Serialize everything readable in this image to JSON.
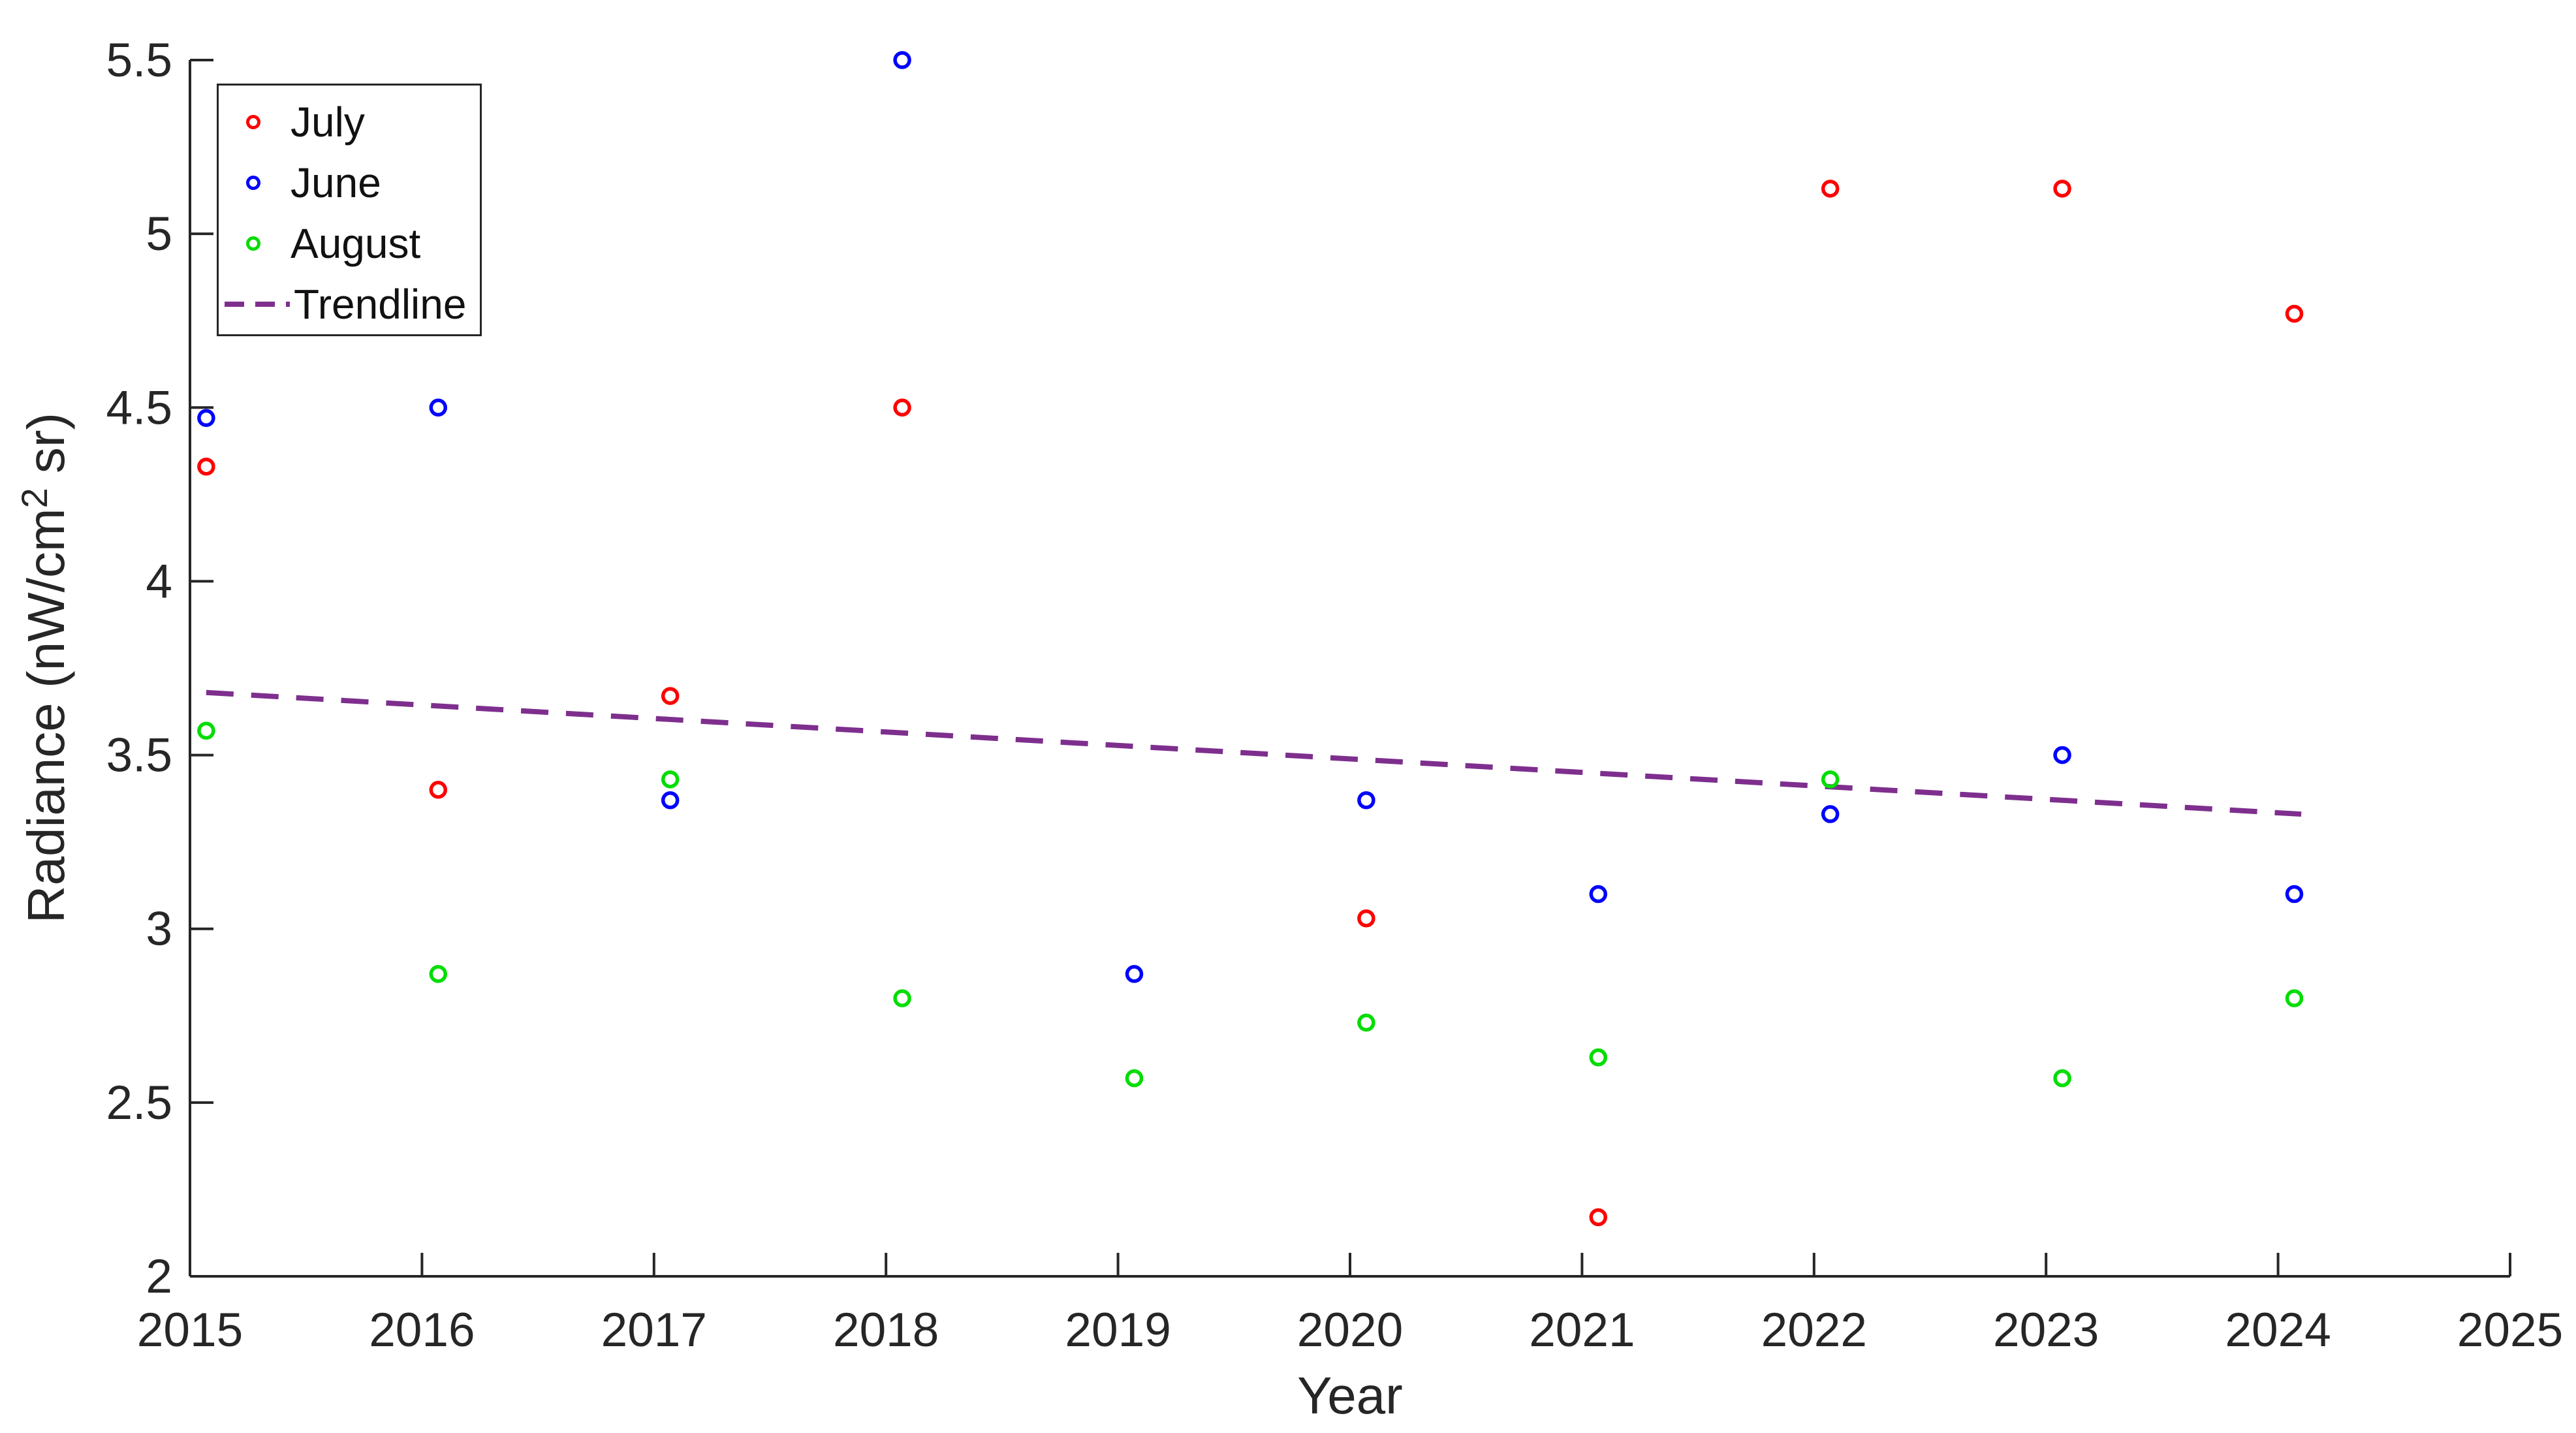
{
  "figure": {
    "xlabel": "Year",
    "ylabel_pre": "Radiance (nW/cm",
    "ylabel_sup": "2",
    "ylabel_post": " sr)"
  },
  "legend": {
    "items": [
      {
        "label": "July",
        "marker": "circle-outline-icon",
        "color": "#FF0000"
      },
      {
        "label": "June",
        "marker": "circle-outline-icon",
        "color": "#0000FF"
      },
      {
        "label": "August",
        "marker": "circle-outline-icon",
        "color": "#00DD00"
      },
      {
        "label": "Trendline",
        "marker": "dashed-line-icon",
        "color": "#7E2F8E"
      }
    ],
    "position": "top-left-inside"
  },
  "chart_data": {
    "type": "scatter",
    "xlabel": "Year",
    "ylabel": "Radiance (nW/cm^2 sr)",
    "xlim": [
      2015,
      2025
    ],
    "ylim": [
      2,
      5.5
    ],
    "x_ticks": [
      2015,
      2016,
      2017,
      2018,
      2019,
      2020,
      2021,
      2022,
      2023,
      2024,
      2025
    ],
    "y_ticks": [
      2,
      2.5,
      3,
      3.5,
      4,
      4.5,
      5,
      5.5
    ],
    "grid": false,
    "legend_position": "top-left-inside",
    "x": [
      2015,
      2016,
      2017,
      2018,
      2019,
      2020,
      2021,
      2022,
      2023,
      2024
    ],
    "marker_x_offset": 0.07,
    "series": [
      {
        "name": "July",
        "color": "#FF0000",
        "values": [
          4.33,
          3.4,
          3.67,
          4.5,
          null,
          3.03,
          2.17,
          5.13,
          5.13,
          4.77
        ]
      },
      {
        "name": "June",
        "color": "#0000FF",
        "values": [
          4.47,
          4.5,
          3.37,
          5.5,
          2.87,
          3.37,
          3.1,
          3.33,
          3.5,
          3.1
        ]
      },
      {
        "name": "August",
        "color": "#00DD00",
        "values": [
          3.57,
          2.87,
          3.43,
          2.8,
          2.57,
          2.73,
          2.63,
          3.43,
          2.57,
          2.8
        ]
      }
    ],
    "trendline": {
      "name": "Trendline",
      "color": "#7E2F8E",
      "style": "dashed",
      "x_start": 2015.07,
      "y_start": 3.68,
      "x_end": 2024.1,
      "y_end": 3.33
    }
  }
}
